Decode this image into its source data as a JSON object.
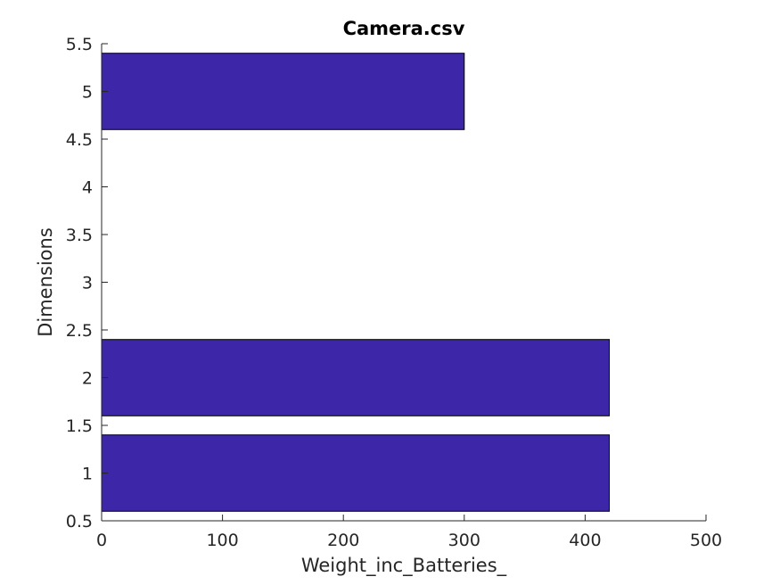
{
  "chart_data": {
    "type": "bar",
    "orientation": "horizontal",
    "title": "Camera.csv",
    "xlabel": "Weight_inc_Batteries_",
    "ylabel": "Dimensions",
    "xlim": [
      0,
      500
    ],
    "ylim": [
      0.5,
      5.5
    ],
    "xticks": [
      "0",
      "100",
      "200",
      "300",
      "400",
      "500"
    ],
    "yticks": [
      "0.5",
      "1",
      "1.5",
      "2",
      "2.5",
      "3",
      "3.5",
      "4",
      "4.5",
      "5",
      "5.5"
    ],
    "bar_width": 0.8,
    "bar_color": "#3d26a8",
    "edge_color": "#000000",
    "grid": false,
    "categories": [
      1,
      2,
      5
    ],
    "values": [
      420,
      420,
      300
    ]
  }
}
